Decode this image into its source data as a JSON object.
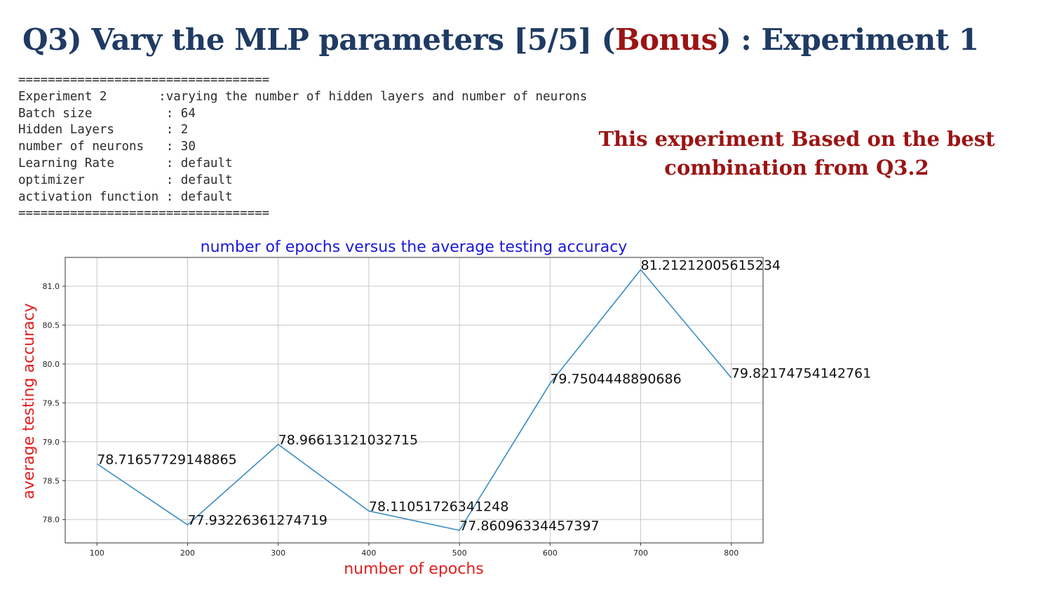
{
  "slide": {
    "title_pre": "Q3) Vary the MLP parameters [5/5]  (",
    "title_bonus": "Bonus",
    "title_post": ") : Experiment 1",
    "note": "This experiment Based on the best combination from Q3.2"
  },
  "config": {
    "separator": "==================================",
    "lines": [
      "Experiment 2       :varying the number of hidden layers and number of neurons",
      "Batch size          : 64",
      "Hidden Layers       : 2",
      "number of neurons   : 30",
      "Learning Rate       : default",
      "optimizer           : default",
      "activation function : default"
    ]
  },
  "colors": {
    "title": "#1f3b64",
    "accent_red": "#9b1414",
    "chart_title": "#1a1ad6",
    "axis_label": "#e02020",
    "line": "#3a8cc4",
    "grid": "#c8c8c8"
  },
  "chart_data": {
    "type": "line",
    "title": "number of epochs versus the average testing accuracy",
    "xlabel": "number of epochs",
    "ylabel": "average testing accuracy",
    "x": [
      100,
      200,
      300,
      400,
      500,
      600,
      700,
      800
    ],
    "y": [
      78.71657729148865,
      77.93226361274719,
      78.96613121032715,
      78.11051726341248,
      77.86096334457397,
      79.7504448890686,
      81.2121200561523,
      79.82174754142761
    ],
    "data_labels": [
      "78.71657729148865",
      "77.93226361274719",
      "78.96613121032715",
      "78.11051726341248",
      "77.86096334457397",
      "79.7504448890686",
      "81.21212005615234",
      "79.82174754142761"
    ],
    "xticks": [
      100,
      200,
      300,
      400,
      500,
      600,
      700,
      800
    ],
    "xtick_labels": [
      "100",
      "200",
      "300",
      "400",
      "500",
      "600",
      "700",
      "800"
    ],
    "yticks": [
      78.0,
      78.5,
      79.0,
      79.5,
      80.0,
      80.5,
      81.0
    ],
    "ytick_labels": [
      "78.0",
      "78.5",
      "79.0",
      "79.5",
      "80.0",
      "80.5",
      "81.0"
    ],
    "xlim": [
      65,
      835
    ],
    "ylim": [
      77.7,
      81.37
    ],
    "grid": true
  }
}
